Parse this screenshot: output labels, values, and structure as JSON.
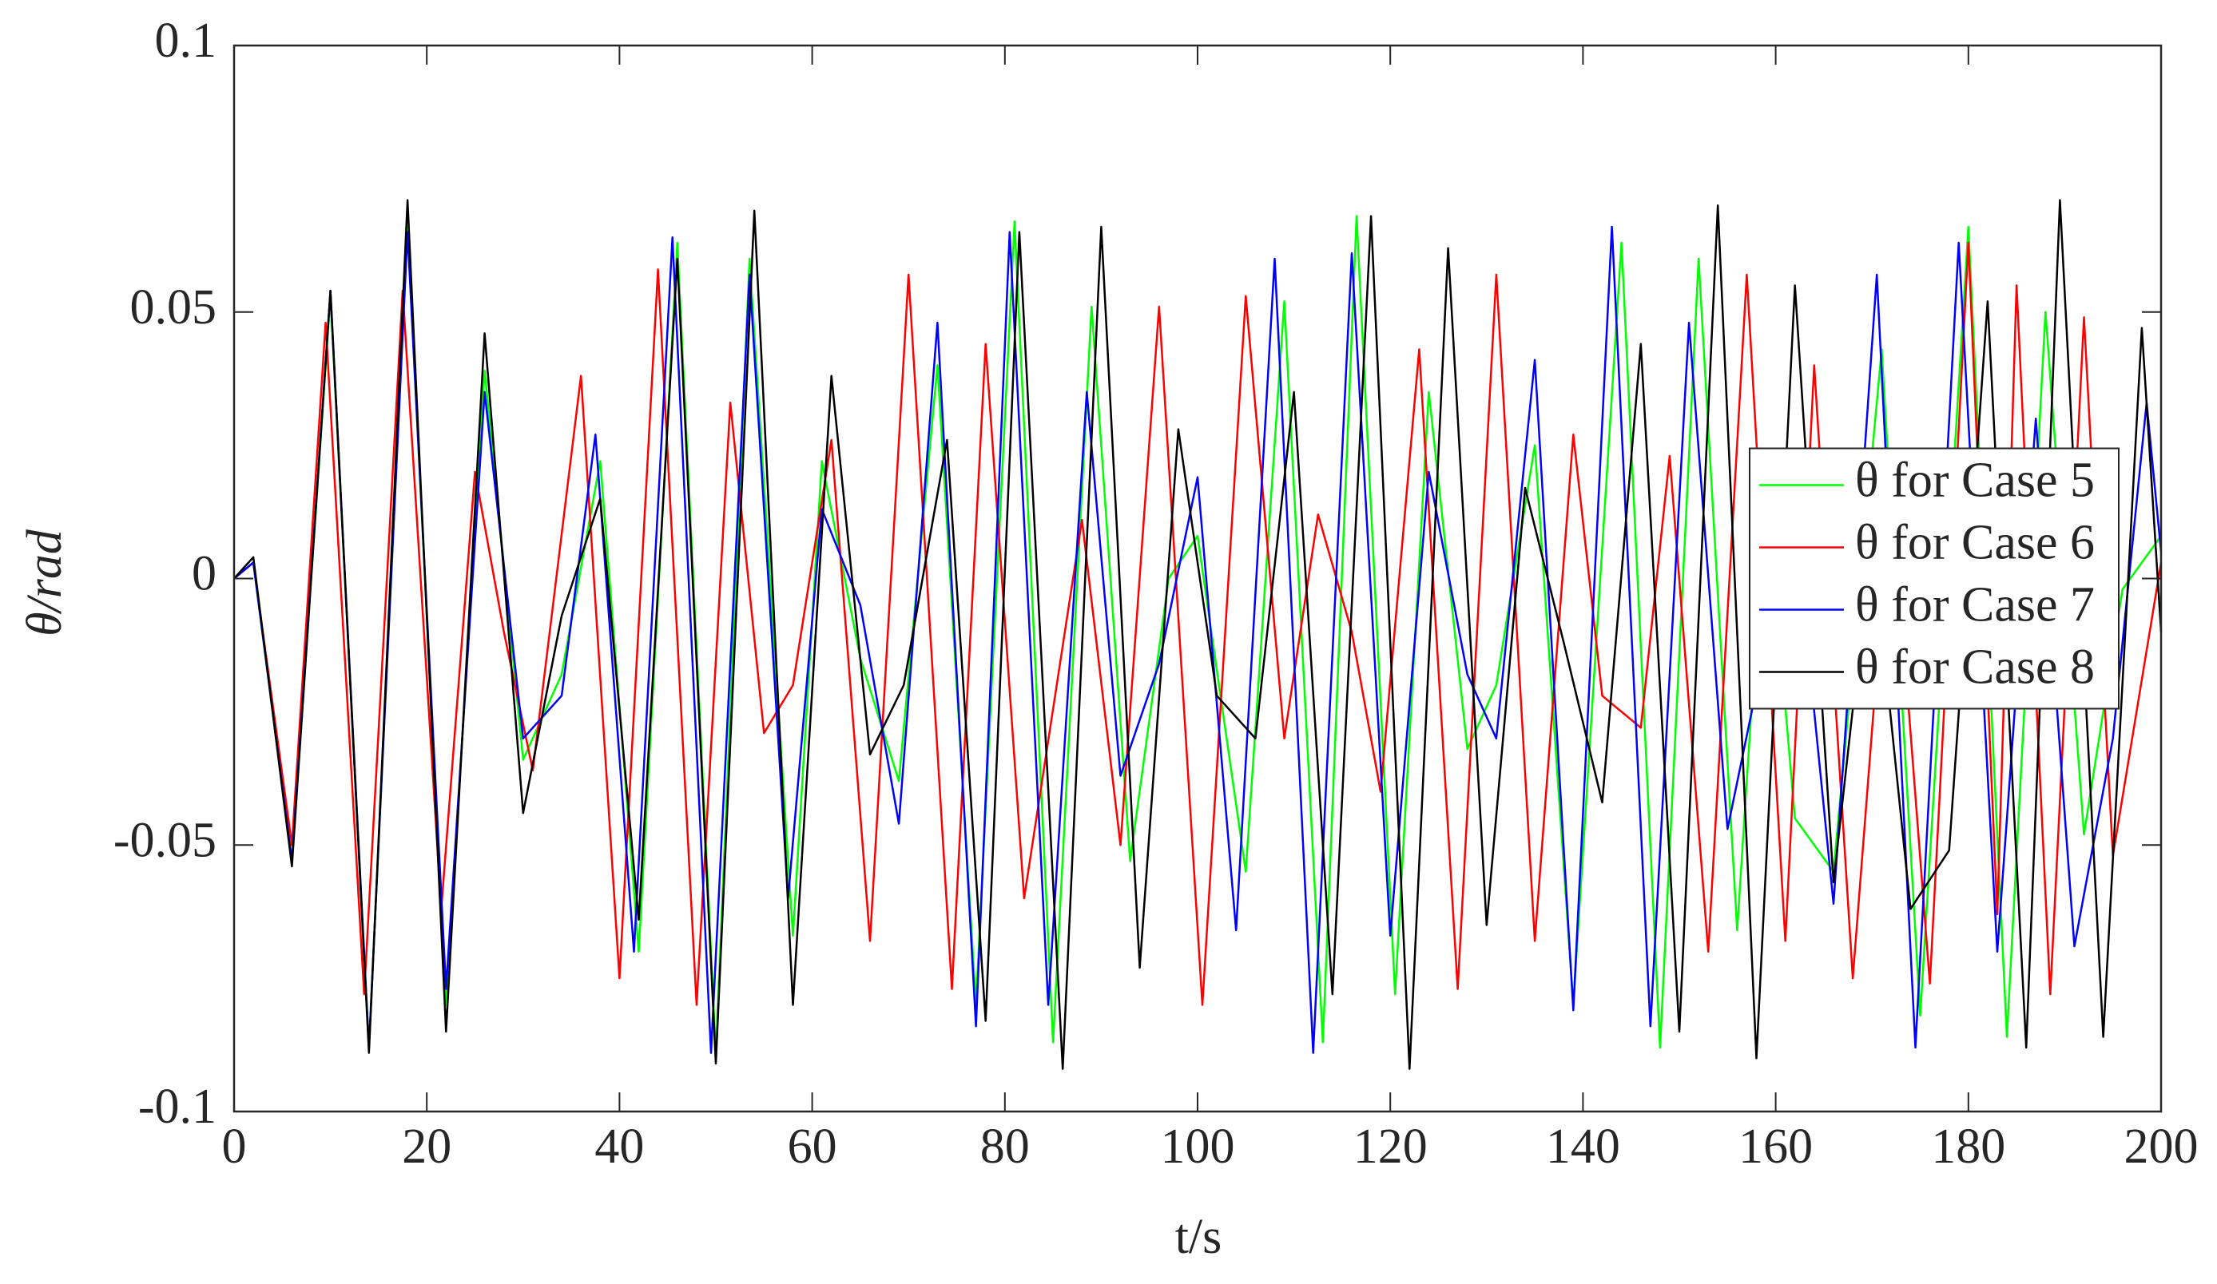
{
  "chart_data": {
    "type": "line",
    "xlabel": "t/s",
    "ylabel": "θ/rad",
    "xlim": [
      0,
      200
    ],
    "ylim": [
      -0.1,
      0.1
    ],
    "xticks": [
      0,
      20,
      40,
      60,
      80,
      100,
      120,
      140,
      160,
      180,
      200
    ],
    "yticks": [
      -0.1,
      -0.05,
      0,
      0.05,
      0.1
    ],
    "legend_loc": "east",
    "series": [
      {
        "name": "θ for Case 5",
        "color": "#00ff00",
        "x": [
          0,
          2,
          6,
          10,
          14,
          18,
          22,
          26,
          30,
          34,
          38,
          42,
          46,
          50,
          53.5,
          58,
          61,
          65,
          69,
          73,
          77,
          81,
          85,
          89,
          93,
          97,
          100,
          105,
          109,
          113,
          116.5,
          120.5,
          124,
          128,
          131,
          135,
          139,
          144,
          148,
          152,
          156,
          159,
          162,
          166,
          171,
          175,
          180,
          184,
          188,
          192,
          196,
          200
        ],
        "values": [
          0,
          0.003,
          -0.053,
          0.053,
          -0.088,
          0.066,
          -0.08,
          0.039,
          -0.034,
          -0.018,
          0.022,
          -0.07,
          0.063,
          -0.089,
          0.06,
          -0.067,
          0.022,
          -0.015,
          -0.038,
          0.04,
          -0.08,
          0.067,
          -0.087,
          0.051,
          -0.053,
          0.0,
          0.008,
          -0.055,
          0.052,
          -0.087,
          0.068,
          -0.078,
          0.035,
          -0.032,
          -0.02,
          0.025,
          -0.08,
          0.063,
          -0.088,
          0.06,
          -0.066,
          0.018,
          -0.045,
          -0.055,
          0.043,
          -0.082,
          0.066,
          -0.086,
          0.05,
          -0.048,
          -0.002,
          0.008
        ]
      },
      {
        "name": "θ for Case 6",
        "color": "#ff0000",
        "x": [
          0,
          2,
          6,
          9.5,
          13.5,
          17.5,
          21.5,
          25,
          28,
          31,
          36,
          40,
          44,
          48,
          51.5,
          55,
          58,
          62,
          66,
          70,
          74.5,
          78,
          82,
          88,
          92,
          96,
          100.5,
          105,
          109,
          112.5,
          116,
          119,
          123,
          127,
          131,
          135,
          139,
          142,
          146,
          149,
          153,
          157,
          161,
          164,
          168,
          172,
          176,
          180,
          183,
          185,
          188.5,
          192,
          195,
          200
        ],
        "values": [
          0,
          0.003,
          -0.05,
          0.048,
          -0.078,
          0.054,
          -0.062,
          0.02,
          -0.01,
          -0.036,
          0.038,
          -0.075,
          0.058,
          -0.08,
          0.033,
          -0.029,
          -0.02,
          0.026,
          -0.068,
          0.057,
          -0.077,
          0.044,
          -0.06,
          0.011,
          -0.05,
          0.051,
          -0.08,
          0.053,
          -0.03,
          0.012,
          -0.01,
          -0.04,
          0.043,
          -0.077,
          0.057,
          -0.068,
          0.027,
          -0.022,
          -0.028,
          0.023,
          -0.07,
          0.057,
          -0.068,
          0.04,
          -0.075,
          0.018,
          -0.076,
          0.063,
          -0.063,
          0.055,
          -0.078,
          0.049,
          -0.052,
          0.003
        ]
      },
      {
        "name": "θ for Case 7",
        "color": "#0000ff",
        "x": [
          0,
          2,
          6,
          10,
          14,
          18,
          22,
          26,
          30,
          34,
          37.5,
          41.5,
          45.5,
          49.5,
          53.5,
          57.5,
          61,
          65,
          69,
          73,
          77,
          80.5,
          84.5,
          88.5,
          92,
          96,
          100,
          104,
          108,
          112,
          116,
          120,
          124,
          128,
          131,
          135,
          139,
          143,
          147,
          151,
          155,
          159,
          162,
          166,
          170.5,
          174.5,
          179,
          183,
          187,
          191,
          195,
          198.5,
          200
        ],
        "values": [
          0,
          0.003,
          -0.053,
          0.054,
          -0.088,
          0.065,
          -0.077,
          0.035,
          -0.03,
          -0.022,
          0.027,
          -0.07,
          0.064,
          -0.089,
          0.057,
          -0.06,
          0.013,
          -0.005,
          -0.046,
          0.048,
          -0.084,
          0.065,
          -0.08,
          0.035,
          -0.037,
          -0.016,
          0.019,
          -0.066,
          0.06,
          -0.089,
          0.061,
          -0.067,
          0.02,
          -0.018,
          -0.03,
          0.041,
          -0.081,
          0.066,
          -0.084,
          0.048,
          -0.047,
          -0.012,
          0.011,
          -0.061,
          0.057,
          -0.088,
          0.063,
          -0.07,
          0.03,
          -0.069,
          -0.03,
          0.033,
          0.005
        ]
      },
      {
        "name": "θ for Case 8",
        "color": "#000000",
        "x": [
          0,
          2,
          6,
          10,
          14,
          18,
          22,
          26,
          30,
          34,
          38,
          42,
          46,
          50,
          54,
          58,
          62,
          66,
          69.5,
          74,
          78,
          81.5,
          86,
          90,
          94,
          98,
          102,
          106,
          110,
          114,
          118,
          122,
          126,
          130,
          134,
          138,
          142,
          146,
          150,
          154,
          158,
          162,
          166,
          170,
          174,
          178,
          182,
          186,
          189.5,
          194,
          198,
          200
        ],
        "values": [
          0,
          0.004,
          -0.054,
          0.054,
          -0.089,
          0.071,
          -0.085,
          0.046,
          -0.044,
          -0.007,
          0.015,
          -0.064,
          0.06,
          -0.091,
          0.069,
          -0.08,
          0.038,
          -0.033,
          -0.02,
          0.026,
          -0.083,
          0.065,
          -0.092,
          0.066,
          -0.073,
          0.028,
          -0.022,
          -0.03,
          0.035,
          -0.078,
          0.068,
          -0.092,
          0.062,
          -0.065,
          0.017,
          -0.012,
          -0.042,
          0.044,
          -0.085,
          0.07,
          -0.09,
          0.055,
          -0.057,
          0.008,
          -0.062,
          -0.051,
          0.052,
          -0.088,
          0.071,
          -0.086,
          0.047,
          -0.01
        ]
      }
    ]
  }
}
